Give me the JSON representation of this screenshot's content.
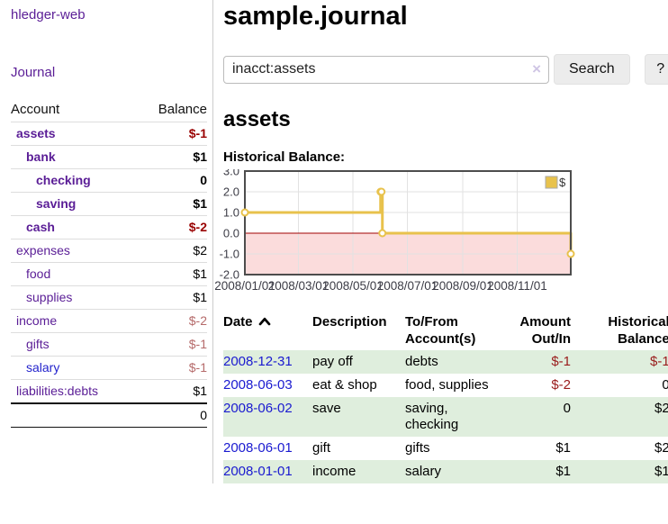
{
  "sidebar": {
    "brand": "hledger-web",
    "nav_journal": "Journal",
    "accounts_table": {
      "headers": {
        "account": "Account",
        "balance": "Balance"
      },
      "rows": [
        {
          "name": "assets",
          "balance": "$-1",
          "depth": 1,
          "bold": true
        },
        {
          "name": "bank",
          "balance": "$1",
          "depth": 2,
          "bold": true
        },
        {
          "name": "checking",
          "balance": "0",
          "depth": 3,
          "bold": true
        },
        {
          "name": "saving",
          "balance": "$1",
          "depth": 3,
          "bold": true
        },
        {
          "name": "cash",
          "balance": "$-2",
          "depth": 2,
          "bold": true
        },
        {
          "name": "expenses",
          "balance": "$2",
          "depth": 1,
          "bold": false
        },
        {
          "name": "food",
          "balance": "$1",
          "depth": 2,
          "bold": false
        },
        {
          "name": "supplies",
          "balance": "$1",
          "depth": 2,
          "bold": false
        },
        {
          "name": "income",
          "balance": "$-2",
          "depth": 1,
          "bold": false
        },
        {
          "name": "gifts",
          "balance": "$-1",
          "depth": 2,
          "bold": false
        },
        {
          "name": "salary",
          "balance": "$-1",
          "depth": 2,
          "bold": false,
          "variant": "blue"
        },
        {
          "name": "liabilities:debts",
          "balance": "$1",
          "depth": 1,
          "bold": false
        }
      ],
      "total": "0"
    }
  },
  "main": {
    "title": "sample.journal",
    "search": {
      "value": "inacct:assets",
      "clear_icon": "×",
      "button": "Search",
      "help_button": "?"
    },
    "account_heading": "assets",
    "chart_label": "Historical Balance:"
  },
  "chart_data": {
    "type": "line",
    "title": "Historical Balance",
    "series": [
      {
        "name": "$",
        "step": true,
        "x": [
          "2008-01-01",
          "2008-06-01",
          "2008-06-02",
          "2008-06-03",
          "2008-12-31"
        ],
        "values": [
          1,
          2,
          2,
          0,
          -1
        ]
      }
    ],
    "x_range": [
      "2008-01-01",
      "2008-12-31"
    ],
    "ylim": [
      -2,
      3
    ],
    "y_ticks": [
      3,
      2,
      1,
      0,
      -1,
      -2
    ],
    "x_ticks": [
      "2008/01/01",
      "2008/03/01",
      "2008/05/01",
      "2008/07/01",
      "2008/09/01",
      "2008/11/01"
    ],
    "legend": {
      "label": "$",
      "position": "top-right"
    },
    "grid": true,
    "colors": {
      "line": "#e8c24c",
      "negative_region": "#fbdcdc",
      "zero_line": "#a00000",
      "grid": "#e2e2e2",
      "border": "#4d4d4d",
      "tick_text": "#3c3c46"
    }
  },
  "register": {
    "headers": {
      "date": "Date",
      "description": "Description",
      "accounts_1": "To/From",
      "accounts_2": "Account(s)",
      "amount_1": "Amount",
      "amount_2": "Out/In",
      "balance_1": "Historical",
      "balance_2": "Balance"
    },
    "rows": [
      {
        "date": "2008-12-31",
        "description": "pay off",
        "accounts": "debts",
        "amount": "$-1",
        "balance": "$-1"
      },
      {
        "date": "2008-06-03",
        "description": "eat & shop",
        "accounts": "food, supplies",
        "amount": "$-2",
        "balance": "0"
      },
      {
        "date": "2008-06-02",
        "description": "save",
        "accounts": "saving, checking",
        "amount": "0",
        "balance": "$2"
      },
      {
        "date": "2008-06-01",
        "description": "gift",
        "accounts": "gifts",
        "amount": "$1",
        "balance": "$2"
      },
      {
        "date": "2008-01-01",
        "description": "income",
        "accounts": "salary",
        "amount": "$1",
        "balance": "$1"
      }
    ]
  },
  "colors": {
    "link_purple": "#5a1d96",
    "link_blue": "#2323cc",
    "negative_strong": "#990000",
    "negative_muted": "#b56a6a",
    "register_negative": "#991b1b",
    "row_green": "#dfeedd"
  }
}
